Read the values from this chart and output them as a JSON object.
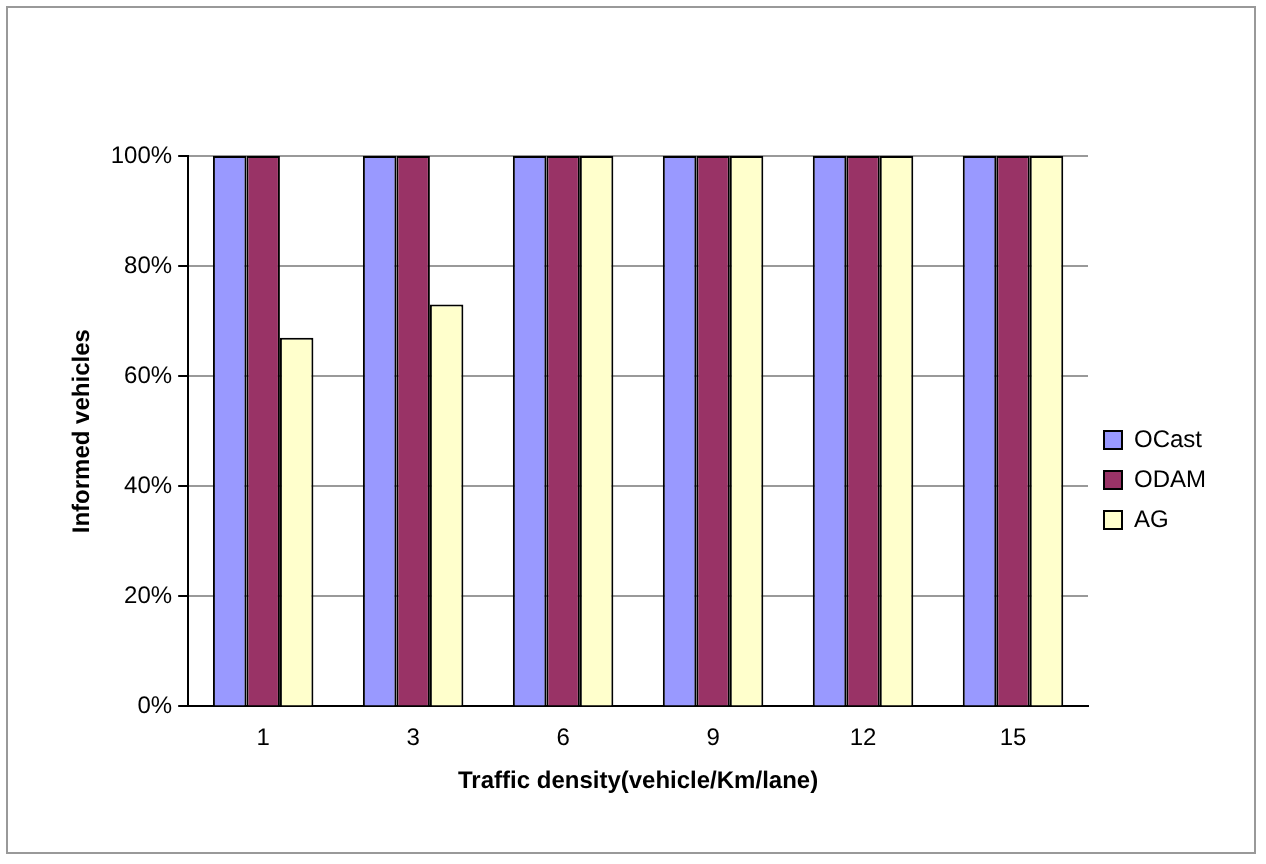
{
  "chart_data": {
    "type": "bar",
    "xlabel": "Traffic density(vehicle/Km/lane)",
    "ylabel": "Informed vehicles",
    "categories": [
      "1",
      "3",
      "6",
      "9",
      "12",
      "15"
    ],
    "series": [
      {
        "name": "OCast",
        "color": "#9999ff",
        "values": [
          100,
          100,
          100,
          100,
          100,
          100
        ]
      },
      {
        "name": "ODAM",
        "color": "#993366",
        "values": [
          100,
          100,
          100,
          100,
          100,
          100
        ]
      },
      {
        "name": "AG",
        "color": "#ffffcc",
        "values": [
          67,
          73,
          100,
          100,
          100,
          100
        ]
      }
    ],
    "ylim": [
      0,
      100
    ],
    "yticks": [
      {
        "value": 0,
        "label": "0%"
      },
      {
        "value": 20,
        "label": "20%"
      },
      {
        "value": 40,
        "label": "40%"
      },
      {
        "value": 60,
        "label": "60%"
      },
      {
        "value": 80,
        "label": "80%"
      },
      {
        "value": 100,
        "label": "100%"
      }
    ],
    "grid": "y",
    "legend": "right"
  }
}
